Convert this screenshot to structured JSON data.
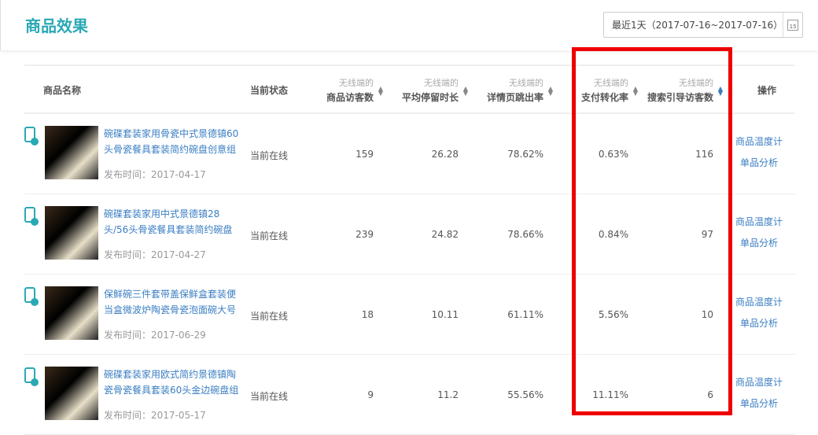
{
  "header": {
    "title": "商品效果",
    "date_range": "最近1天（2017-07-16~2017-07-16）",
    "calendar_icon_text": "15"
  },
  "columns": {
    "name": "商品名称",
    "status": "当前状态",
    "prefix": "无线端的",
    "visitors": "商品访客数",
    "stay": "平均停留时长",
    "bounce": "详情页跳出率",
    "conversion": "支付转化率",
    "search": "搜索引导访客数",
    "actions": "操作"
  },
  "rows": [
    {
      "name": "碗碟套装家用骨瓷中式景德镇60头骨瓷餐具套装简约碗盘创意组",
      "date": "发布时间：2017-04-17",
      "status": "当前在线",
      "visitors": "159",
      "stay": "26.28",
      "bounce": "78.62%",
      "conversion": "0.63%",
      "search": "116",
      "action1": "商品温度计",
      "action2": "单品分析"
    },
    {
      "name": "碗碟套装家用中式景德镇28头/56头骨瓷餐具套装简约碗盘",
      "date": "发布时间：2017-04-27",
      "status": "当前在线",
      "visitors": "239",
      "stay": "24.82",
      "bounce": "78.66%",
      "conversion": "0.84%",
      "search": "97",
      "action1": "商品温度计",
      "action2": "单品分析"
    },
    {
      "name": "保鲜碗三件套带盖保鲜盒套装便当盒微波炉陶瓷骨瓷泡面碗大号",
      "date": "发布时间：2017-06-29",
      "status": "当前在线",
      "visitors": "18",
      "stay": "10.11",
      "bounce": "61.11%",
      "conversion": "5.56%",
      "search": "10",
      "action1": "商品温度计",
      "action2": "单品分析"
    },
    {
      "name": "碗碟套装家用欧式简约景德镇陶瓷骨瓷餐具套装60头金边碗盘组",
      "date": "发布时间：2017-05-17",
      "status": "当前在线",
      "visitors": "9",
      "stay": "11.2",
      "bounce": "55.56%",
      "conversion": "11.11%",
      "search": "6",
      "action1": "商品温度计",
      "action2": "单品分析"
    }
  ],
  "colors": {
    "accent": "#2aa8b5",
    "link": "#3a7ec2",
    "highlight": "#ee0000"
  }
}
